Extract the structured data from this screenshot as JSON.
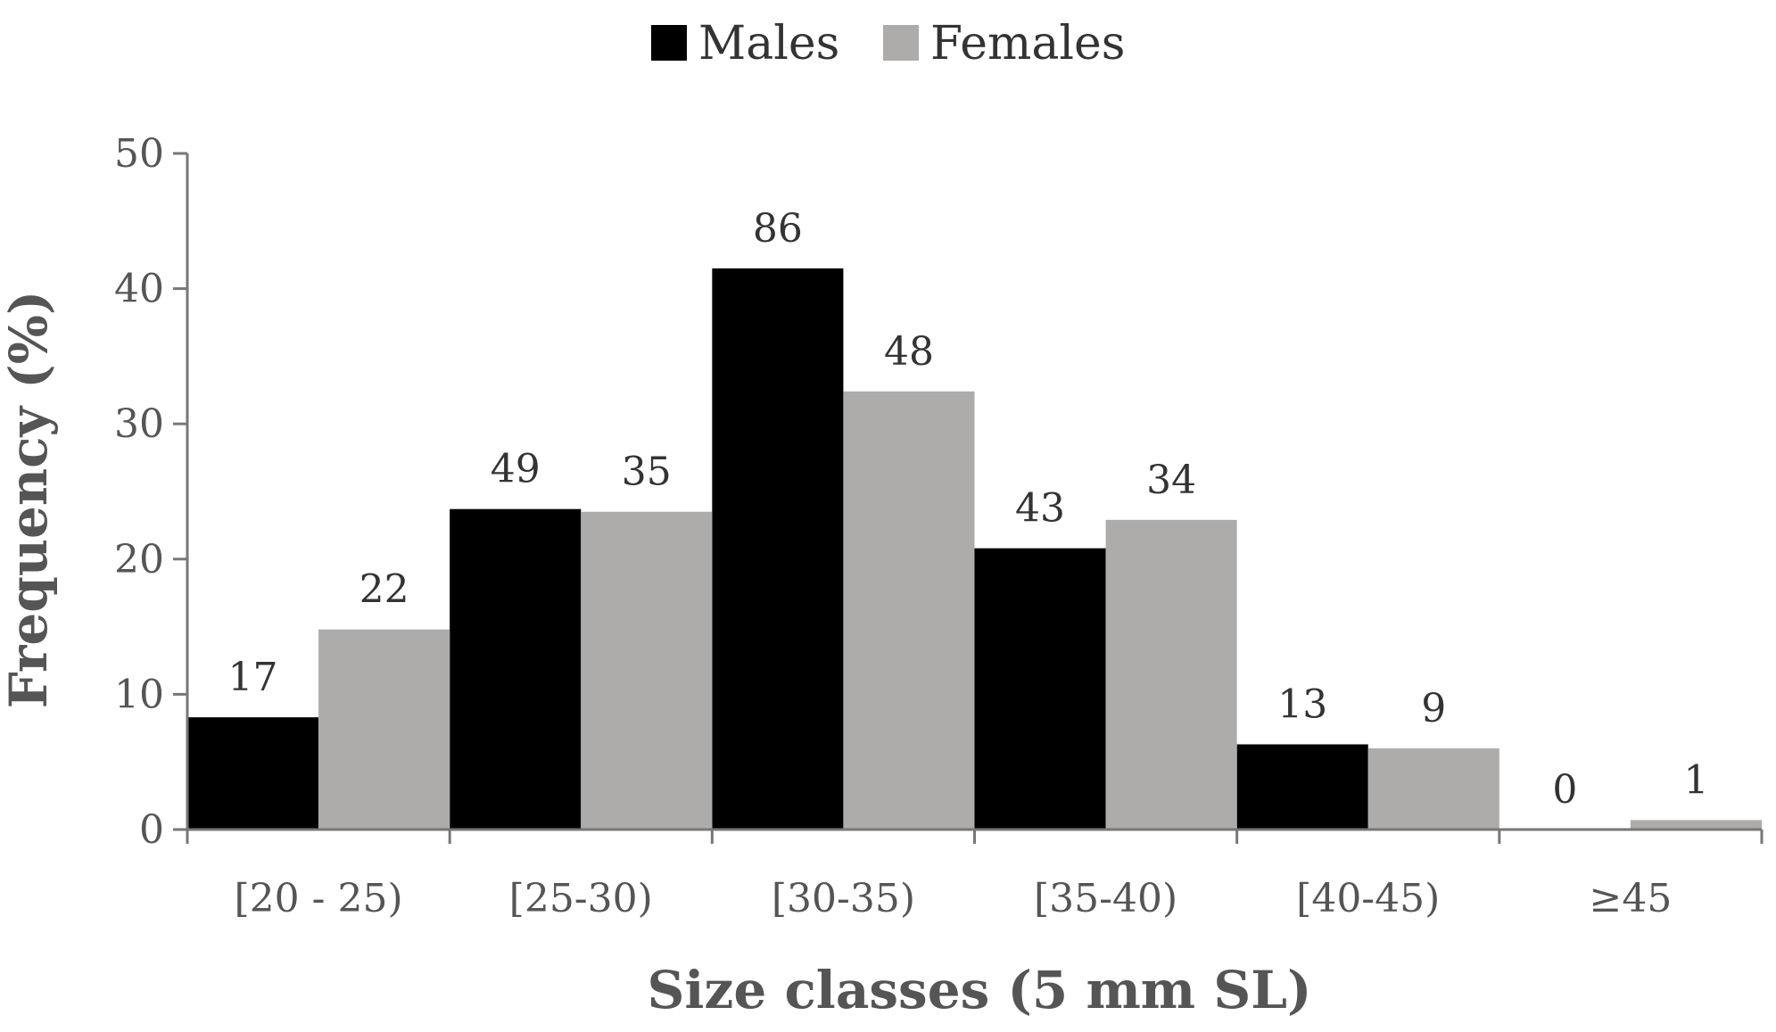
{
  "chart_data": {
    "type": "bar",
    "title": "",
    "xlabel": "Size classes (5 mm SL)",
    "ylabel": "Frequency (%)",
    "ylim": [
      0,
      50
    ],
    "yticks": [
      0,
      10,
      20,
      30,
      40,
      50
    ],
    "categories": [
      "[20 - 25)",
      "[25-30)",
      "[30-35)",
      "[35-40)",
      "[40-45)",
      "≥45"
    ],
    "series": [
      {
        "name": "Males",
        "color": "#000000",
        "values": [
          8.3,
          23.7,
          41.5,
          20.8,
          6.3,
          0
        ],
        "labels": [
          "17",
          "49",
          "86",
          "43",
          "13",
          "0"
        ]
      },
      {
        "name": "Females",
        "color": "#aeacab",
        "values": [
          14.8,
          23.5,
          32.4,
          22.9,
          6.0,
          0.7
        ],
        "labels": [
          "22",
          "35",
          "48",
          "34",
          "9",
          "1"
        ]
      }
    ],
    "legend_position": "top-center",
    "grid": false
  }
}
